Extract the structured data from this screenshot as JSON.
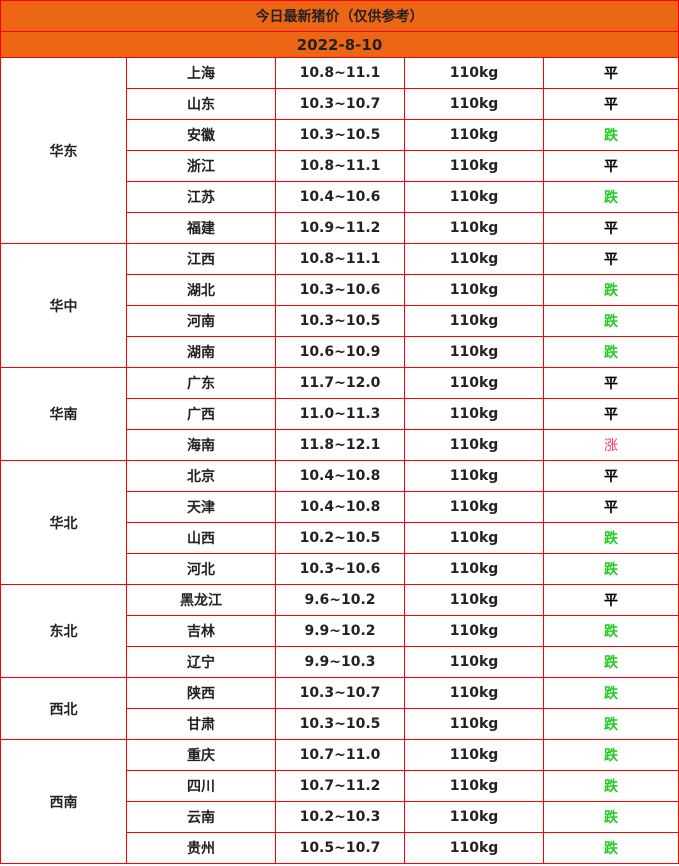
{
  "title": "今日最新猪价（仅供参考）",
  "date": "2022-8-10",
  "trend_colors": {
    "平": "#000000",
    "跌": "#22cc22",
    "涨": "#ff3355"
  },
  "regions": [
    {
      "name": "华东",
      "rows": [
        {
          "province": "上海",
          "price": "10.8~11.1",
          "weight": "110kg",
          "trend": "平"
        },
        {
          "province": "山东",
          "price": "10.3~10.7",
          "weight": "110kg",
          "trend": "平"
        },
        {
          "province": "安徽",
          "price": "10.3~10.5",
          "weight": "110kg",
          "trend": "跌"
        },
        {
          "province": "浙江",
          "price": "10.8~11.1",
          "weight": "110kg",
          "trend": "平"
        },
        {
          "province": "江苏",
          "price": "10.4~10.6",
          "weight": "110kg",
          "trend": "跌"
        },
        {
          "province": "福建",
          "price": "10.9~11.2",
          "weight": "110kg",
          "trend": "平"
        }
      ]
    },
    {
      "name": "华中",
      "rows": [
        {
          "province": "江西",
          "price": "10.8~11.1",
          "weight": "110kg",
          "trend": "平"
        },
        {
          "province": "湖北",
          "price": "10.3~10.6",
          "weight": "110kg",
          "trend": "跌"
        },
        {
          "province": "河南",
          "price": "10.3~10.5",
          "weight": "110kg",
          "trend": "跌"
        },
        {
          "province": "湖南",
          "price": "10.6~10.9",
          "weight": "110kg",
          "trend": "跌"
        }
      ]
    },
    {
      "name": "华南",
      "rows": [
        {
          "province": "广东",
          "price": "11.7~12.0",
          "weight": "110kg",
          "trend": "平"
        },
        {
          "province": "广西",
          "price": "11.0~11.3",
          "weight": "110kg",
          "trend": "平"
        },
        {
          "province": "海南",
          "price": "11.8~12.1",
          "weight": "110kg",
          "trend": "涨"
        }
      ]
    },
    {
      "name": "华北",
      "rows": [
        {
          "province": "北京",
          "price": "10.4~10.8",
          "weight": "110kg",
          "trend": "平"
        },
        {
          "province": "天津",
          "price": "10.4~10.8",
          "weight": "110kg",
          "trend": "平"
        },
        {
          "province": "山西",
          "price": "10.2~10.5",
          "weight": "110kg",
          "trend": "跌"
        },
        {
          "province": "河北",
          "price": "10.3~10.6",
          "weight": "110kg",
          "trend": "跌"
        }
      ]
    },
    {
      "name": "东北",
      "rows": [
        {
          "province": "黑龙江",
          "price": "9.6~10.2",
          "weight": "110kg",
          "trend": "平"
        },
        {
          "province": "吉林",
          "price": "9.9~10.2",
          "weight": "110kg",
          "trend": "跌"
        },
        {
          "province": "辽宁",
          "price": "9.9~10.3",
          "weight": "110kg",
          "trend": "跌"
        }
      ]
    },
    {
      "name": "西北",
      "rows": [
        {
          "province": "陕西",
          "price": "10.3~10.7",
          "weight": "110kg",
          "trend": "跌"
        },
        {
          "province": "甘肃",
          "price": "10.3~10.5",
          "weight": "110kg",
          "trend": "跌"
        }
      ]
    },
    {
      "name": "西南",
      "rows": [
        {
          "province": "重庆",
          "price": "10.7~11.0",
          "weight": "110kg",
          "trend": "跌"
        },
        {
          "province": "四川",
          "price": "10.7~11.2",
          "weight": "110kg",
          "trend": "跌"
        },
        {
          "province": "云南",
          "price": "10.2~10.3",
          "weight": "110kg",
          "trend": "跌"
        },
        {
          "province": "贵州",
          "price": "10.5~10.7",
          "weight": "110kg",
          "trend": "跌"
        }
      ]
    }
  ]
}
